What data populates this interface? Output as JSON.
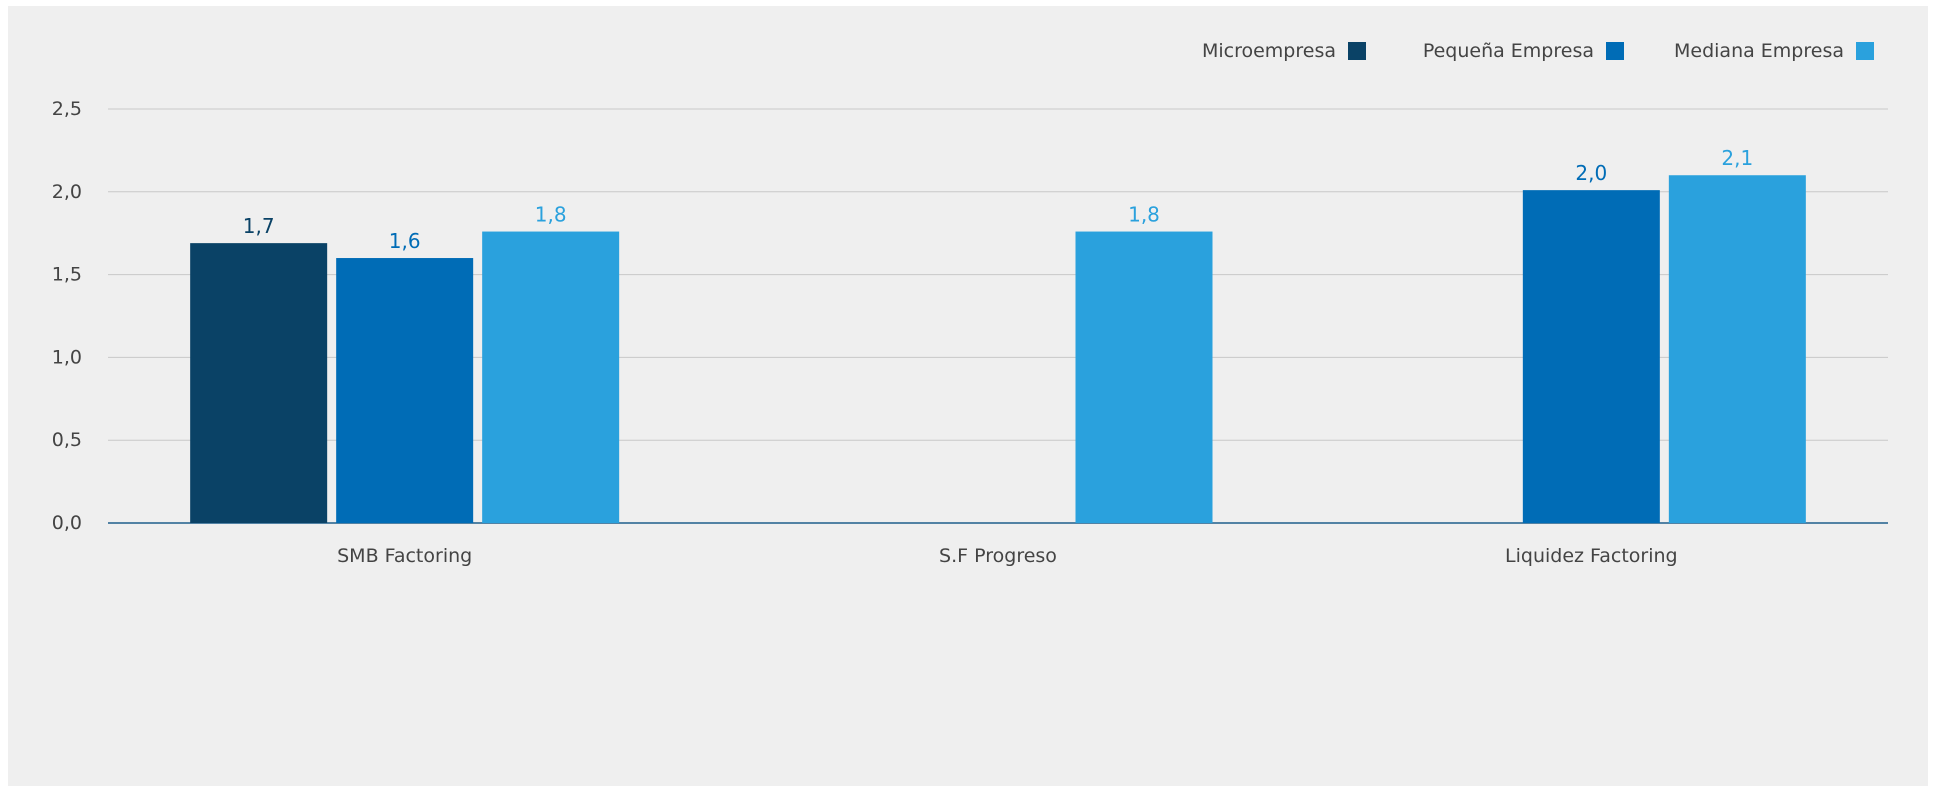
{
  "chart_data": {
    "type": "bar",
    "categories": [
      "SMB Factoring",
      "S.F Progreso",
      "Liquidez Factoring"
    ],
    "series": [
      {
        "name": "Microempresa",
        "color": "#0a4266",
        "values": [
          1.69,
          null,
          null
        ],
        "labels": [
          "1,7",
          "",
          ""
        ]
      },
      {
        "name": "Pequeña Empresa",
        "color": "#006cb6",
        "values": [
          1.6,
          null,
          2.01
        ],
        "labels": [
          "1,6",
          "",
          "2,0"
        ]
      },
      {
        "name": "Mediana Empresa",
        "color": "#2aa1dd",
        "values": [
          1.76,
          1.76,
          2.1
        ],
        "labels": [
          "1,8",
          "1,8",
          "2,1"
        ]
      }
    ],
    "yticks": [
      "0,0",
      "0,5",
      "1,0",
      "1,5",
      "2,0",
      "2,5"
    ],
    "ylim": [
      0,
      2.5
    ],
    "grid": true,
    "legend": "top-right"
  }
}
